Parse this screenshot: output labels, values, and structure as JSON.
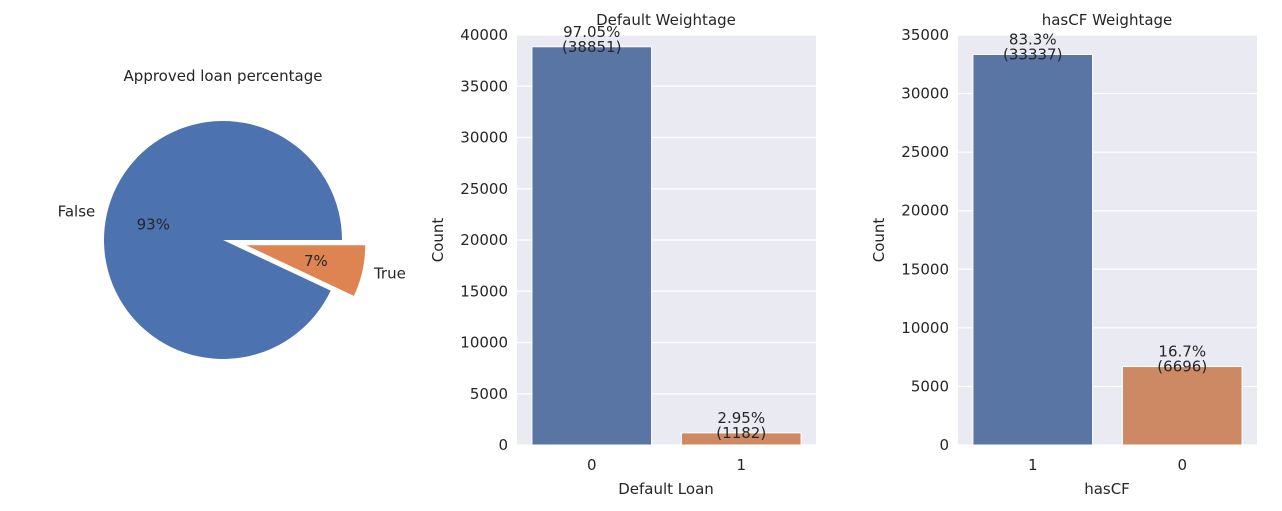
{
  "chart_data": [
    {
      "type": "pie",
      "title": "Approved loan percentage",
      "labels": [
        "False",
        "True"
      ],
      "values": [
        93,
        7
      ],
      "pct_labels": [
        "93%",
        "7%"
      ],
      "explode": [
        0,
        0.2
      ],
      "colors": [
        "#4c72b0",
        "#dd8452"
      ]
    },
    {
      "type": "bar",
      "title": "Default Weightage",
      "xlabel": "Default Loan",
      "ylabel": "Count",
      "categories": [
        "0",
        "1"
      ],
      "values": [
        38851,
        1182
      ],
      "pct_labels": [
        "97.05%",
        "2.95%"
      ],
      "count_labels": [
        "(38851)",
        "(1182)"
      ],
      "ylim": [
        0,
        40000
      ],
      "yticks": [
        0,
        5000,
        10000,
        15000,
        20000,
        25000,
        30000,
        35000,
        40000
      ],
      "ytick_labels": [
        "0",
        "5000",
        "10000",
        "15000",
        "20000",
        "25000",
        "30000",
        "35000",
        "40000"
      ],
      "colors": [
        "#5975a4",
        "#cc8963"
      ]
    },
    {
      "type": "bar",
      "title": "hasCF Weightage",
      "xlabel": "hasCF",
      "ylabel": "Count",
      "categories": [
        "1",
        "0"
      ],
      "values": [
        33337,
        6696
      ],
      "pct_labels": [
        "83.3%",
        "16.7%"
      ],
      "count_labels": [
        "(33337)",
        "(6696)"
      ],
      "ylim": [
        0,
        35000
      ],
      "yticks": [
        0,
        5000,
        10000,
        15000,
        20000,
        25000,
        30000,
        35000
      ],
      "ytick_labels": [
        "0",
        "5000",
        "10000",
        "15000",
        "20000",
        "25000",
        "30000",
        "35000"
      ],
      "colors": [
        "#5975a4",
        "#cc8963"
      ]
    }
  ]
}
